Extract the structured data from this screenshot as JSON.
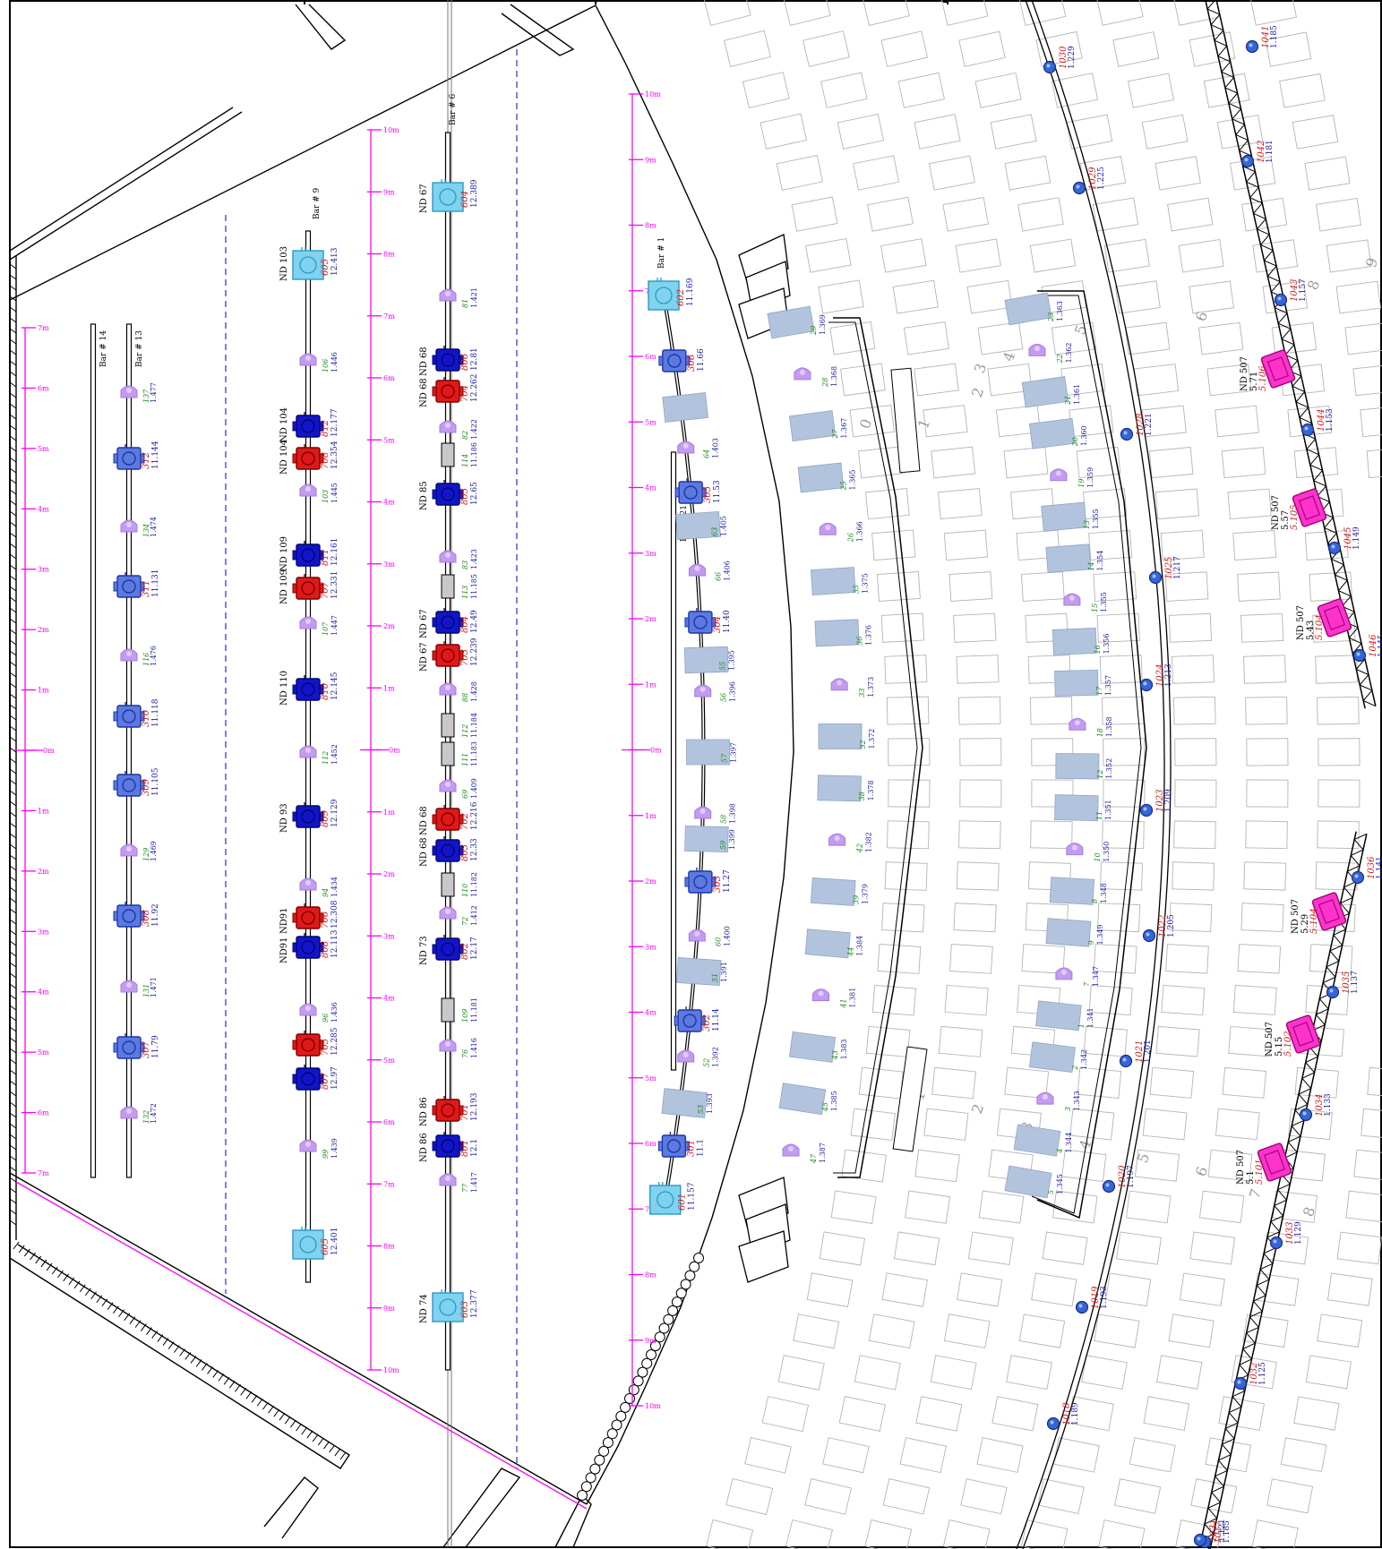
{
  "colors": {
    "ruler": "#ff00ff",
    "dashed_line": "#4a4ad8",
    "profile_fixture": "#5c79e0",
    "blue_fixture": "#1313cc",
    "red_fixture": "#e01818",
    "cyan_fixture": "#7fd3ee",
    "purple_fixture": "#c39bef",
    "gray_fixture": "#c8c8c8",
    "wash_panel": "#b2c4dd",
    "magenta_fixture": "#ff33cc",
    "truss_ball": "#3466d4"
  },
  "icons": [
    "profile-fixture-icon",
    "wash-fixture-icon",
    "par-fixture-icon",
    "gray-fixture-icon",
    "panel-fixture-icon",
    "truss-light-icon",
    "speaker-icon"
  ],
  "rulers": [
    {
      "ticks": [
        "7m",
        "6m",
        "5m",
        "4m",
        "3m",
        "2m",
        "1m",
        "0m",
        "1m",
        "2m",
        "3m",
        "4m",
        "5m",
        "6m",
        "7m"
      ]
    },
    {
      "ticks": [
        "10m",
        "9m",
        "8m",
        "7m",
        "6m",
        "5m",
        "4m",
        "3m",
        "2m",
        "1m",
        "0m",
        "1m",
        "2m",
        "3m",
        "4m",
        "5m",
        "6m",
        "7m",
        "8m",
        "9m",
        "10m"
      ]
    },
    {
      "ticks": [
        "10m",
        "9m",
        "8m",
        "7m",
        "6m",
        "5m",
        "4m",
        "3m",
        "2m",
        "1m",
        "0m",
        "1m",
        "2m",
        "3m",
        "4m",
        "5m",
        "6m",
        "7m",
        "8m",
        "9m",
        "10m"
      ]
    }
  ],
  "bars": [
    {
      "label": "Bar # 14"
    },
    {
      "label": "Bar # 13"
    },
    {
      "label": "Bar # 9"
    },
    {
      "label": "Bar # 6"
    },
    {
      "label": "Bar # 1"
    },
    {
      "label": "Bar # 21"
    }
  ],
  "bar13": {
    "profiles": [
      {
        "chan": "312",
        "addr": "11.144"
      },
      {
        "chan": "311",
        "addr": "11.131"
      },
      {
        "chan": "310",
        "addr": "11.118"
      },
      {
        "chan": "309",
        "addr": "11.105"
      },
      {
        "chan": "308",
        "addr": "11.92"
      },
      {
        "chan": "307",
        "addr": "11.79"
      }
    ],
    "washes": [
      {
        "chan": "137",
        "addr": "1.477"
      },
      {
        "chan": "134",
        "addr": "1.474"
      },
      {
        "chan": "116",
        "addr": "1.476"
      },
      {
        "chan": "129",
        "addr": "1.469"
      },
      {
        "chan": "131",
        "addr": "1.471"
      },
      {
        "chan": "132",
        "addr": "1.472"
      }
    ]
  },
  "bar9": {
    "fixtures": [
      {
        "kind": "cyan",
        "id": "ND 103",
        "chan": "605",
        "addr": "12.413"
      },
      {
        "kind": "wash",
        "chan": "106",
        "addr": "1.446"
      },
      {
        "kind": "blue",
        "id": "ND 104",
        "chan": "812",
        "addr": "12.177"
      },
      {
        "kind": "red",
        "id": "ND 104",
        "chan": "708",
        "addr": "12.354"
      },
      {
        "kind": "wash",
        "chan": "103",
        "addr": "1.445"
      },
      {
        "kind": "blue",
        "id": "ND 109",
        "chan": "811",
        "addr": "12.161"
      },
      {
        "kind": "red",
        "id": "ND 109",
        "chan": "707",
        "addr": "12.331"
      },
      {
        "kind": "wash",
        "chan": "107",
        "addr": "1.447"
      },
      {
        "kind": "blue",
        "id": "ND 110",
        "chan": "810",
        "addr": "12.145"
      },
      {
        "kind": "wash",
        "chan": "112",
        "addr": "1.452"
      },
      {
        "kind": "blue",
        "id": "ND 93",
        "chan": "809",
        "addr": "12.129"
      },
      {
        "kind": "wash",
        "chan": "94",
        "addr": "1.434"
      },
      {
        "kind": "red",
        "id": "ND91",
        "chan": "706",
        "addr": "12.308"
      },
      {
        "kind": "blue",
        "id": "ND91",
        "chan": "808",
        "addr": "12.113"
      },
      {
        "kind": "wash",
        "chan": "96",
        "addr": "1.436"
      },
      {
        "kind": "red",
        "id": "",
        "chan": "705",
        "addr": "12.285"
      },
      {
        "kind": "blue",
        "id": "",
        "chan": "807",
        "addr": "12.97"
      },
      {
        "kind": "wash",
        "chan": "99",
        "addr": "1.439"
      },
      {
        "kind": "cyan",
        "id": "",
        "chan": "605",
        "addr": "12.401"
      }
    ]
  },
  "bar6": {
    "fixtures": [
      {
        "kind": "cyan",
        "id": "ND 67",
        "chan": "604",
        "addr": "12.389"
      },
      {
        "kind": "wash",
        "chan": "81",
        "addr": "1.421"
      },
      {
        "kind": "blue",
        "id": "ND 68",
        "chan": "806",
        "addr": "12.81"
      },
      {
        "kind": "red",
        "id": "ND 68",
        "chan": "704",
        "addr": "12.262"
      },
      {
        "kind": "wash",
        "chan": "82",
        "addr": "1.422"
      },
      {
        "kind": "gray",
        "chan": "114",
        "addr": "11.186"
      },
      {
        "kind": "blue",
        "id": "ND 85",
        "chan": "805",
        "addr": "12.65"
      },
      {
        "kind": "wash",
        "chan": "83",
        "addr": "1.423"
      },
      {
        "kind": "gray",
        "chan": "113",
        "addr": "11.185"
      },
      {
        "kind": "blue",
        "id": "ND 67",
        "chan": "804",
        "addr": "12.49"
      },
      {
        "kind": "red",
        "id": "ND 67",
        "chan": "703",
        "addr": "12.239"
      },
      {
        "kind": "wash",
        "chan": "88",
        "addr": "1.428"
      },
      {
        "kind": "gray",
        "chan": "112",
        "addr": "11.184"
      },
      {
        "kind": "gray",
        "chan": "111",
        "addr": "11.183"
      },
      {
        "kind": "wash",
        "chan": "69",
        "addr": "1.409"
      },
      {
        "kind": "red",
        "id": "ND 68",
        "chan": "702",
        "addr": "12.216"
      },
      {
        "kind": "blue",
        "id": "ND 68",
        "chan": "803",
        "addr": "12.33"
      },
      {
        "kind": "gray",
        "chan": "110",
        "addr": "11.182"
      },
      {
        "kind": "wash",
        "chan": "72",
        "addr": "1.412"
      },
      {
        "kind": "blue",
        "id": "ND 73",
        "chan": "802",
        "addr": "12.17"
      },
      {
        "kind": "gray",
        "chan": "109",
        "addr": "11.181"
      },
      {
        "kind": "wash",
        "chan": "76",
        "addr": "1.416"
      },
      {
        "kind": "red",
        "id": "ND 86",
        "chan": "701",
        "addr": "12.193"
      },
      {
        "kind": "blue",
        "id": "ND 86",
        "chan": "801",
        "addr": "12.1"
      },
      {
        "kind": "wash",
        "chan": "77",
        "addr": "1.417"
      },
      {
        "kind": "cyan",
        "id": "ND 74",
        "chan": "603",
        "addr": "12.377"
      }
    ]
  },
  "bar1": {
    "fixtures": [
      {
        "kind": "cyan",
        "chan": "602",
        "addr": "11.169"
      },
      {
        "kind": "profile",
        "chan": "306",
        "addr": "11.66"
      },
      {
        "kind": "panel",
        "chan": "",
        "addr": ""
      },
      {
        "kind": "wash",
        "chan": "64",
        "addr": "1.403"
      },
      {
        "kind": "profile",
        "chan": "305",
        "addr": "11.53"
      },
      {
        "kind": "panel",
        "chan": "63",
        "addr": "1.405"
      },
      {
        "kind": "wash",
        "chan": "66",
        "addr": "1.406"
      },
      {
        "kind": "profile",
        "chan": "304",
        "addr": "11.40"
      },
      {
        "kind": "panel",
        "chan": "55",
        "addr": "1.395"
      },
      {
        "kind": "wash",
        "chan": "56",
        "addr": "1.396"
      },
      {
        "kind": "panel",
        "chan": "57",
        "addr": "1.397"
      },
      {
        "kind": "wash",
        "chan": "58",
        "addr": "1.398"
      },
      {
        "kind": "panel",
        "chan": "59",
        "addr": "1.399"
      },
      {
        "kind": "profile",
        "chan": "303",
        "addr": "11.27"
      },
      {
        "kind": "wash",
        "chan": "60",
        "addr": "1.400"
      },
      {
        "kind": "panel",
        "chan": "51",
        "addr": "1.391"
      },
      {
        "kind": "profile",
        "chan": "302",
        "addr": "11.14"
      },
      {
        "kind": "wash",
        "chan": "52",
        "addr": "1.392"
      },
      {
        "kind": "panel",
        "chan": "53",
        "addr": "1.393"
      },
      {
        "kind": "profile",
        "chan": "301",
        "addr": "11.1"
      },
      {
        "kind": "cyan",
        "chan": "601",
        "addr": "11.157"
      }
    ]
  },
  "arc1": {
    "labels": [
      {
        "chan": "29",
        "addr": "1.369"
      },
      {
        "chan": "28",
        "addr": "1.368"
      },
      {
        "chan": "27",
        "addr": "1.367"
      },
      {
        "chan": "25",
        "addr": "1.365"
      },
      {
        "chan": "26",
        "addr": "1.366"
      },
      {
        "chan": "35",
        "addr": "1.375"
      },
      {
        "chan": "36",
        "addr": "1.376"
      },
      {
        "chan": "33",
        "addr": "1.373"
      },
      {
        "chan": "32",
        "addr": "1.372"
      },
      {
        "chan": "38",
        "addr": "1.378"
      },
      {
        "chan": "42",
        "addr": "1.382"
      },
      {
        "chan": "39",
        "addr": "1.379"
      },
      {
        "chan": "44",
        "addr": "1.384"
      },
      {
        "chan": "41",
        "addr": "1.381"
      },
      {
        "chan": "43",
        "addr": "1.383"
      },
      {
        "chan": "45",
        "addr": "1.385"
      },
      {
        "chan": "47",
        "addr": "1.387"
      }
    ]
  },
  "arc2": {
    "labels": [
      {
        "chan": "23",
        "addr": "1.363"
      },
      {
        "chan": "22",
        "addr": "1.362"
      },
      {
        "chan": "21",
        "addr": "1.361"
      },
      {
        "chan": "20",
        "addr": "1.360"
      },
      {
        "chan": "19",
        "addr": "1.359"
      },
      {
        "chan": "13",
        "addr": "1.355"
      },
      {
        "chan": "14",
        "addr": "1.354"
      },
      {
        "chan": "15",
        "addr": "1.355"
      },
      {
        "chan": "16",
        "addr": "1.356"
      },
      {
        "chan": "17",
        "addr": "1.357"
      },
      {
        "chan": "18",
        "addr": "1.358"
      },
      {
        "chan": "12",
        "addr": "1.352"
      },
      {
        "chan": "11",
        "addr": "1.351"
      },
      {
        "chan": "10",
        "addr": "1.350"
      },
      {
        "chan": "8",
        "addr": "1.348"
      },
      {
        "chan": "9",
        "addr": "1.349"
      },
      {
        "chan": "7",
        "addr": "1.347"
      },
      {
        "chan": "1",
        "addr": "1.341"
      },
      {
        "chan": "2",
        "addr": "1.342"
      },
      {
        "chan": "3",
        "addr": "1.343"
      },
      {
        "chan": "4",
        "addr": "1.344"
      },
      {
        "chan": "5",
        "addr": "1.345"
      }
    ]
  },
  "truss_lights": [
    {
      "chan": "1030",
      "addr": "1.229"
    },
    {
      "chan": "1029",
      "addr": "1.225"
    },
    {
      "chan": "1028",
      "addr": "1.221"
    },
    {
      "chan": "1025",
      "addr": "1.217"
    },
    {
      "chan": "1024",
      "addr": "1.213"
    },
    {
      "chan": "1023",
      "addr": "1.209"
    },
    {
      "chan": "1022",
      "addr": "1.205"
    },
    {
      "chan": "1021",
      "addr": "1.201"
    },
    {
      "chan": "1020",
      "addr": "1.197"
    },
    {
      "chan": "1019",
      "addr": "1.193"
    },
    {
      "chan": "1018",
      "addr": "1.189"
    },
    {
      "chan": "1017",
      "addr": "1.185"
    },
    {
      "chan": "1041",
      "addr": "1.185"
    },
    {
      "chan": "1042",
      "addr": "1.181"
    },
    {
      "chan": "1043",
      "addr": "1.157"
    },
    {
      "chan": "1044",
      "addr": "1.153"
    },
    {
      "chan": "1045",
      "addr": "1.149"
    },
    {
      "chan": "1046",
      "addr": "1.145"
    },
    {
      "chan": "1036",
      "addr": "1.141"
    },
    {
      "chan": "1035",
      "addr": "1.137"
    },
    {
      "chan": "1034",
      "addr": "1.133"
    },
    {
      "chan": "1033",
      "addr": "1.129"
    },
    {
      "chan": "1032",
      "addr": "1.125"
    },
    {
      "chan": "1031",
      "addr": "1.121"
    }
  ],
  "magenta_fixtures": [
    {
      "id": "ND 507",
      "chan": "5.106",
      "addr": "5.71"
    },
    {
      "id": "ND 507",
      "chan": "5.105",
      "addr": "5.57"
    },
    {
      "id": "ND 507",
      "chan": "5.104",
      "addr": "5.43"
    },
    {
      "id": "ND 507",
      "chan": "5.104",
      "addr": "5.29"
    },
    {
      "id": "ND 507",
      "chan": "5.102",
      "addr": "5.15"
    },
    {
      "id": "ND 507",
      "chan": "5.101",
      "addr": "5.1"
    }
  ],
  "seat_numbers": [
    "2",
    "1",
    "0",
    "3",
    "4",
    "5",
    "6",
    "8",
    "9",
    "2",
    "1",
    "3",
    "4",
    "5",
    "6",
    "7",
    "8"
  ]
}
